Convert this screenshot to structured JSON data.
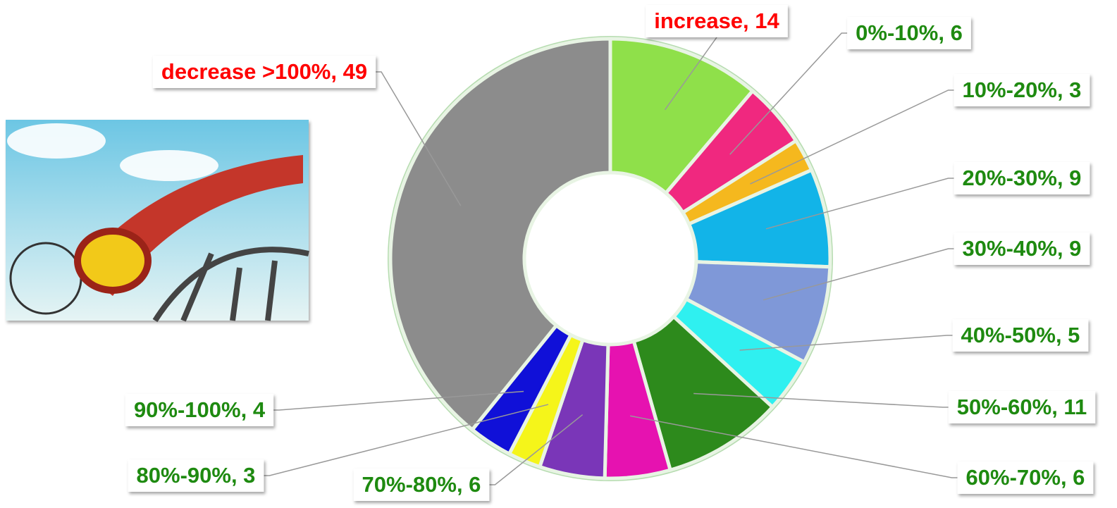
{
  "chart_data": {
    "type": "donut",
    "values": [
      14,
      6,
      3,
      9,
      9,
      5,
      11,
      6,
      6,
      3,
      4,
      49
    ],
    "value_labels": [
      "increase, 14",
      "0%-10%, 6",
      "10%-20%, 3",
      "20%-30%, 9",
      "30%-40%, 9",
      "40%-50%, 5",
      "50%-60%, 11",
      "60%-70%, 6",
      "70%-80%, 6",
      "80%-90%, 3",
      "90%-100%, 4",
      "decrease >100%, 49"
    ],
    "colors": [
      "#8fe04a",
      "#f0287f",
      "#f5b81e",
      "#12b4e8",
      "#7f98d8",
      "#2ff0f0",
      "#2d8a1c",
      "#e612b0",
      "#7a36b8",
      "#f5f51a",
      "#1010d8",
      "#8c8c8c"
    ],
    "label_colors": [
      "#ff0000",
      "#1e8a10",
      "#1e8a10",
      "#1e8a10",
      "#1e8a10",
      "#1e8a10",
      "#1e8a10",
      "#1e8a10",
      "#1e8a10",
      "#1e8a10",
      "#1e8a10",
      "#ff0000"
    ]
  }
}
